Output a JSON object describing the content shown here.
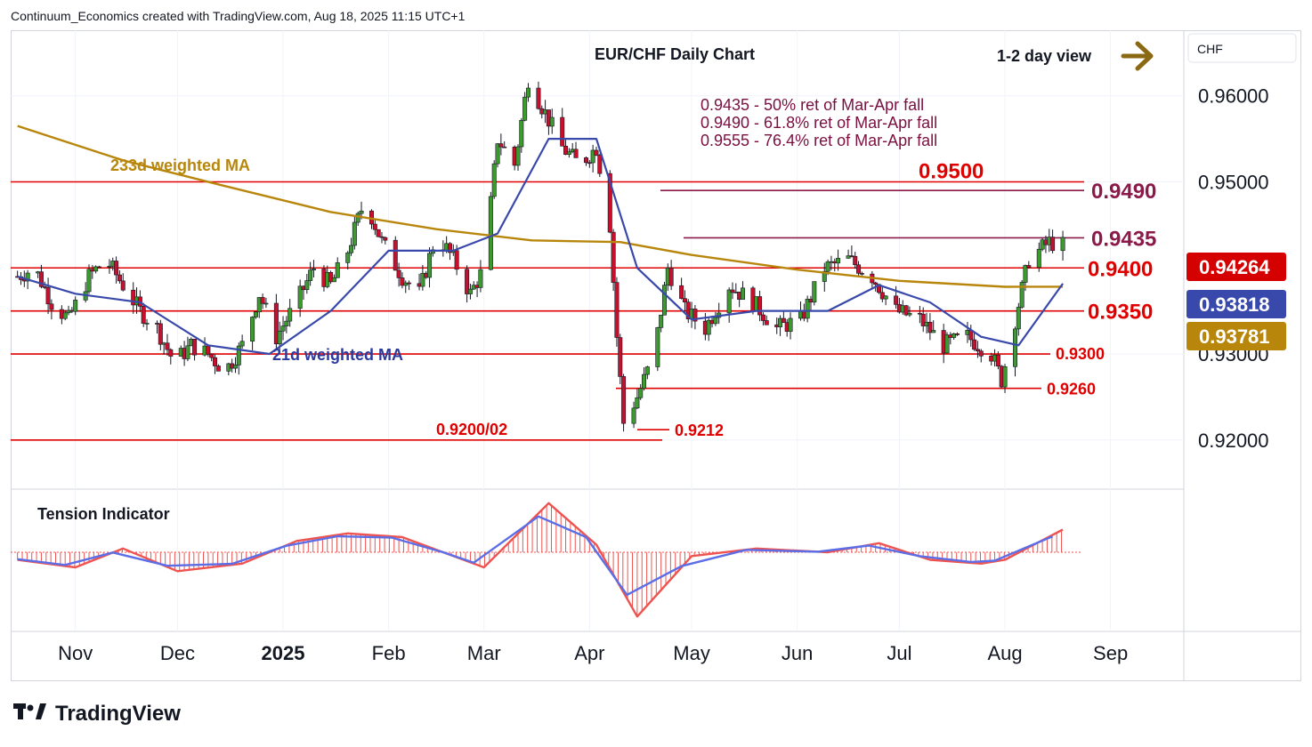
{
  "header": {
    "attribution": "Continuum_Economics created with TradingView.com, Aug 18, 2025 11:15 UTC+1"
  },
  "brand": {
    "name": "TradingView",
    "logo_icon": "tradingview-logo-icon"
  },
  "chart": {
    "title": "EUR/CHF Daily Chart",
    "view_label": "1-2 day view",
    "view_arrow_icon": "right-arrow-icon",
    "currency_box": "CHF",
    "fib_notes": [
      "0.9435 - 50% ret of Mar-Apr fall",
      "0.9490 - 61.8% ret of Mar-Apr fall",
      "0.9555 - 76.4% ret of Mar-Apr fall"
    ],
    "ma233_label": "233d weighted MA",
    "ma21_label": "21d weighted MA",
    "price_badges": {
      "last": "0.94264",
      "ma21": "0.93818",
      "ma233": "0.93781"
    },
    "indicator_label": "Tension Indicator"
  },
  "colors": {
    "up": "#3c9a2e",
    "down": "#c8102e",
    "wick": "#131722",
    "level_red": "#e00000",
    "level_maroon": "#8b1a4a",
    "ma21": "#3949ab",
    "ma233": "#b8860b",
    "tension_red": "#ef5350",
    "tension_blue": "#5b6ee8",
    "badge_last": "#d50000",
    "badge_ma21": "#3949ab",
    "badge_ma233": "#b8860b",
    "view_arrow": "#8b6914"
  },
  "chart_data": {
    "type": "candlestick",
    "title": "EUR/CHF Daily Chart",
    "y_axis_ticks": [
      0.96,
      0.95,
      0.93,
      0.92
    ],
    "y_axis_tick_labels": [
      "0.96000",
      "0.95000",
      "0.93000",
      "0.92000"
    ],
    "ylim": [
      0.9145,
      0.967
    ],
    "x_axis_labels": [
      "Nov",
      "Dec",
      "2025",
      "Feb",
      "Mar",
      "Apr",
      "May",
      "Jun",
      "Jul",
      "Aug",
      "Sep"
    ],
    "levels": [
      {
        "value": 0.95,
        "label": "0.9500",
        "style": "red"
      },
      {
        "value": 0.949,
        "label": "0.9490",
        "style": "maroon"
      },
      {
        "value": 0.9435,
        "label": "0.9435",
        "style": "maroon"
      },
      {
        "value": 0.94,
        "label": "0.9400",
        "style": "red"
      },
      {
        "value": 0.935,
        "label": "0.9350",
        "style": "red"
      },
      {
        "value": 0.93,
        "label": "0.9300",
        "style": "red"
      },
      {
        "value": 0.926,
        "label": "0.9260",
        "style": "red"
      },
      {
        "value": 0.9212,
        "label": "0.9212",
        "style": "red"
      },
      {
        "value": 0.92,
        "label": "0.9200/02",
        "style": "red"
      }
    ],
    "close_path": [
      [
        "2024-10-15",
        0.939
      ],
      [
        "2024-10-20",
        0.94
      ],
      [
        "2024-10-25",
        0.936
      ],
      [
        "2024-10-30",
        0.934
      ],
      [
        "2024-11-05",
        0.939
      ],
      [
        "2024-11-10",
        0.941
      ],
      [
        "2024-11-15",
        0.938
      ],
      [
        "2024-11-20",
        0.935
      ],
      [
        "2024-11-25",
        0.933
      ],
      [
        "2024-11-30",
        0.929
      ],
      [
        "2024-12-05",
        0.931
      ],
      [
        "2024-12-10",
        0.93
      ],
      [
        "2024-12-15",
        0.928
      ],
      [
        "2024-12-20",
        0.931
      ],
      [
        "2024-12-25",
        0.937
      ],
      [
        "2024-12-30",
        0.932
      ],
      [
        "2025-01-05",
        0.936
      ],
      [
        "2025-01-10",
        0.94
      ],
      [
        "2025-01-15",
        0.938
      ],
      [
        "2025-01-20",
        0.942
      ],
      [
        "2025-01-25",
        0.948
      ],
      [
        "2025-01-30",
        0.943
      ],
      [
        "2025-02-05",
        0.939
      ],
      [
        "2025-02-10",
        0.937
      ],
      [
        "2025-02-15",
        0.944
      ],
      [
        "2025-02-20",
        0.941
      ],
      [
        "2025-02-25",
        0.937
      ],
      [
        "2025-03-01",
        0.94
      ],
      [
        "2025-03-05",
        0.955
      ],
      [
        "2025-03-10",
        0.952
      ],
      [
        "2025-03-14",
        0.962
      ],
      [
        "2025-03-19",
        0.958
      ],
      [
        "2025-03-24",
        0.954
      ],
      [
        "2025-03-29",
        0.952
      ],
      [
        "2025-04-03",
        0.954
      ],
      [
        "2025-04-07",
        0.945
      ],
      [
        "2025-04-09",
        0.932
      ],
      [
        "2025-04-11",
        0.922
      ],
      [
        "2025-04-15",
        0.925
      ],
      [
        "2025-04-20",
        0.93
      ],
      [
        "2025-04-24",
        0.94
      ],
      [
        "2025-04-29",
        0.935
      ],
      [
        "2025-05-05",
        0.933
      ],
      [
        "2025-05-12",
        0.938
      ],
      [
        "2025-05-19",
        0.936
      ],
      [
        "2025-05-26",
        0.933
      ],
      [
        "2025-06-02",
        0.934
      ],
      [
        "2025-06-09",
        0.94
      ],
      [
        "2025-06-16",
        0.941
      ],
      [
        "2025-06-23",
        0.939
      ],
      [
        "2025-06-30",
        0.935
      ],
      [
        "2025-07-07",
        0.934
      ],
      [
        "2025-07-14",
        0.931
      ],
      [
        "2025-07-21",
        0.932
      ],
      [
        "2025-07-28",
        0.93
      ],
      [
        "2025-07-31",
        0.927
      ],
      [
        "2025-08-04",
        0.934
      ],
      [
        "2025-08-08",
        0.941
      ],
      [
        "2025-08-14",
        0.943
      ],
      [
        "2025-08-18",
        0.9426
      ]
    ],
    "ma21": [
      [
        "2024-10-15",
        0.939
      ],
      [
        "2024-11-01",
        0.937
      ],
      [
        "2024-11-20",
        0.936
      ],
      [
        "2024-12-10",
        0.931
      ],
      [
        "2024-12-28",
        0.93
      ],
      [
        "2025-01-15",
        0.935
      ],
      [
        "2025-02-01",
        0.942
      ],
      [
        "2025-02-20",
        0.942
      ],
      [
        "2025-03-05",
        0.944
      ],
      [
        "2025-03-20",
        0.955
      ],
      [
        "2025-04-03",
        0.955
      ],
      [
        "2025-04-15",
        0.94
      ],
      [
        "2025-05-01",
        0.934
      ],
      [
        "2025-05-20",
        0.935
      ],
      [
        "2025-06-10",
        0.935
      ],
      [
        "2025-06-25",
        0.938
      ],
      [
        "2025-07-10",
        0.936
      ],
      [
        "2025-07-25",
        0.932
      ],
      [
        "2025-08-05",
        0.931
      ],
      [
        "2025-08-18",
        0.93818
      ]
    ],
    "ma233": [
      [
        "2024-10-15",
        0.9565
      ],
      [
        "2024-11-15",
        0.9525
      ],
      [
        "2024-12-15",
        0.9495
      ],
      [
        "2025-01-15",
        0.9465
      ],
      [
        "2025-02-15",
        0.9445
      ],
      [
        "2025-03-15",
        0.9432
      ],
      [
        "2025-04-10",
        0.943
      ],
      [
        "2025-05-01",
        0.9415
      ],
      [
        "2025-06-01",
        0.9398
      ],
      [
        "2025-07-01",
        0.9385
      ],
      [
        "2025-08-01",
        0.9378
      ],
      [
        "2025-08-18",
        0.93781
      ]
    ],
    "tension_indicator": [
      [
        "2024-10-15",
        -0.1
      ],
      [
        "2024-11-01",
        -0.2
      ],
      [
        "2024-11-15",
        0.05
      ],
      [
        "2024-12-01",
        -0.25
      ],
      [
        "2024-12-20",
        -0.15
      ],
      [
        "2025-01-05",
        0.15
      ],
      [
        "2025-01-20",
        0.25
      ],
      [
        "2025-02-05",
        0.2
      ],
      [
        "2025-02-20",
        -0.05
      ],
      [
        "2025-03-01",
        -0.2
      ],
      [
        "2025-03-20",
        0.65
      ],
      [
        "2025-04-03",
        0.1
      ],
      [
        "2025-04-15",
        -0.85
      ],
      [
        "2025-05-01",
        -0.05
      ],
      [
        "2025-05-20",
        0.05
      ],
      [
        "2025-06-10",
        0.0
      ],
      [
        "2025-06-25",
        0.12
      ],
      [
        "2025-07-10",
        -0.1
      ],
      [
        "2025-07-25",
        -0.15
      ],
      [
        "2025-08-01",
        -0.1
      ],
      [
        "2025-08-18",
        0.3
      ]
    ]
  }
}
